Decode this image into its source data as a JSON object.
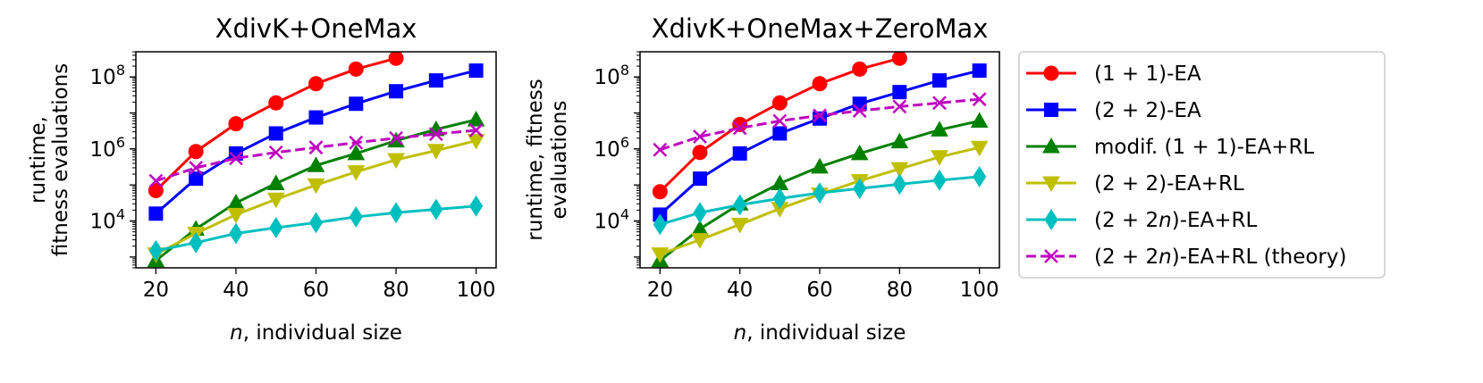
{
  "chart_data": {
    "type": "line",
    "yscale": "log",
    "legend": {
      "placement": "right",
      "entries": [
        "(1 + 1)-EA",
        "(2 + 2)-EA",
        "modif. (1 + 1)-EA+RL",
        "(2 + 2)-EA+RL",
        "(2 + 2n)-EA+RL",
        "(2 + 2n)-EA+RL (theory)"
      ]
    },
    "panels": [
      {
        "title": "XdivK+OneMax",
        "xlabel_italic": "n",
        "xlabel_rest": ", individual size",
        "ylabel_lines": [
          "runtime,",
          "fitness evaluations"
        ],
        "xlim": [
          15,
          105
        ],
        "ylim": [
          500,
          500000000
        ],
        "xticks": [
          20,
          40,
          60,
          80,
          100
        ],
        "ytick_values": [
          10000,
          1000000,
          100000000
        ],
        "ytick_exponents": [
          "4",
          "6",
          "8"
        ],
        "series": [
          {
            "name": "(1 + 1)-EA",
            "color": "#ff0000",
            "marker": "circle",
            "dash": false,
            "x": [
              20,
              30,
              40,
              50,
              60,
              70,
              80
            ],
            "y": [
              70000,
              850000,
              5000000,
              19000000,
              65000000,
              165000000,
              330000000
            ]
          },
          {
            "name": "(2 + 2)-EA",
            "color": "#0000ff",
            "marker": "square",
            "dash": false,
            "x": [
              20,
              30,
              40,
              50,
              60,
              70,
              80,
              90,
              100
            ],
            "y": [
              16000,
              150000,
              750000,
              2700000,
              7500000,
              18000000,
              40000000,
              80000000,
              150000000
            ]
          },
          {
            "name": "modif. (1 + 1)-EA+RL",
            "color": "#008000",
            "marker": "triangle-up",
            "dash": false,
            "x": [
              20,
              30,
              40,
              50,
              60,
              70,
              80,
              90,
              100
            ],
            "y": [
              800,
              6000,
              32000,
              110000,
              350000,
              750000,
              1700000,
              3500000,
              6500000
            ]
          },
          {
            "name": "(2 + 2)-EA+RL",
            "color": "#bfbf00",
            "marker": "triangle-down",
            "dash": false,
            "x": [
              20,
              30,
              40,
              50,
              60,
              70,
              80,
              90,
              100
            ],
            "y": [
              1200,
              4500,
              15000,
              40000,
              100000,
              230000,
              500000,
              900000,
              1700000
            ]
          },
          {
            "name": "(2 + 2n)-EA+RL",
            "color": "#00bfbf",
            "marker": "diamond",
            "dash": false,
            "x": [
              20,
              30,
              40,
              50,
              60,
              70,
              80,
              90,
              100
            ],
            "y": [
              1500,
              2500,
              4500,
              6500,
              9000,
              13000,
              17000,
              21000,
              26000
            ]
          },
          {
            "name": "(2 + 2n)-EA+RL (theory)",
            "color": "#bf00bf",
            "marker": "x",
            "dash": true,
            "x": [
              20,
              30,
              40,
              50,
              60,
              70,
              80,
              90,
              100
            ],
            "y": [
              130000,
              300000,
              550000,
              800000,
              1100000,
              1500000,
              2000000,
              2600000,
              3300000
            ]
          }
        ]
      },
      {
        "title": "XdivK+OneMax+ZeroMax",
        "xlabel_italic": "n",
        "xlabel_rest": ", individual size",
        "ylabel_lines": [
          "runtime, fitness",
          "evaluations"
        ],
        "xlim": [
          15,
          105
        ],
        "ylim": [
          500,
          500000000
        ],
        "xticks": [
          20,
          40,
          60,
          80,
          100
        ],
        "ytick_values": [
          10000,
          1000000,
          100000000
        ],
        "ytick_exponents": [
          "4",
          "6",
          "8"
        ],
        "series": [
          {
            "name": "(1 + 1)-EA",
            "color": "#ff0000",
            "marker": "circle",
            "dash": false,
            "x": [
              20,
              30,
              40,
              50,
              60,
              70,
              80
            ],
            "y": [
              65000,
              800000,
              4800000,
              19000000,
              65000000,
              165000000,
              330000000
            ]
          },
          {
            "name": "(2 + 2)-EA",
            "color": "#0000ff",
            "marker": "square",
            "dash": false,
            "x": [
              20,
              30,
              40,
              50,
              60,
              70,
              80,
              90,
              100
            ],
            "y": [
              15000,
              150000,
              750000,
              2700000,
              7000000,
              18000000,
              38000000,
              80000000,
              150000000
            ]
          },
          {
            "name": "modif. (1 + 1)-EA+RL",
            "color": "#008000",
            "marker": "triangle-up",
            "dash": false,
            "x": [
              20,
              30,
              40,
              50,
              60,
              70,
              80,
              90,
              100
            ],
            "y": [
              800,
              6000,
              30000,
              110000,
              320000,
              750000,
              1600000,
              3400000,
              6000000
            ]
          },
          {
            "name": "(2 + 2)-EA+RL",
            "color": "#bfbf00",
            "marker": "triangle-down",
            "dash": false,
            "x": [
              20,
              30,
              40,
              50,
              60,
              70,
              80,
              90,
              100
            ],
            "y": [
              1200,
              3000,
              8000,
              22000,
              55000,
              130000,
              280000,
              600000,
              1100000
            ]
          },
          {
            "name": "(2 + 2n)-EA+RL",
            "color": "#00bfbf",
            "marker": "diamond",
            "dash": false,
            "x": [
              20,
              30,
              40,
              50,
              60,
              70,
              80,
              90,
              100
            ],
            "y": [
              8000,
              17000,
              28000,
              42000,
              60000,
              80000,
              105000,
              135000,
              170000
            ]
          },
          {
            "name": "(2 + 2n)-EA+RL (theory)",
            "color": "#bf00bf",
            "marker": "x",
            "dash": true,
            "x": [
              20,
              30,
              40,
              50,
              60,
              70,
              80,
              90,
              100
            ],
            "y": [
              950000,
              2200000,
              3800000,
              6000000,
              8500000,
              11500000,
              15000000,
              19000000,
              24000000
            ]
          }
        ]
      }
    ]
  }
}
